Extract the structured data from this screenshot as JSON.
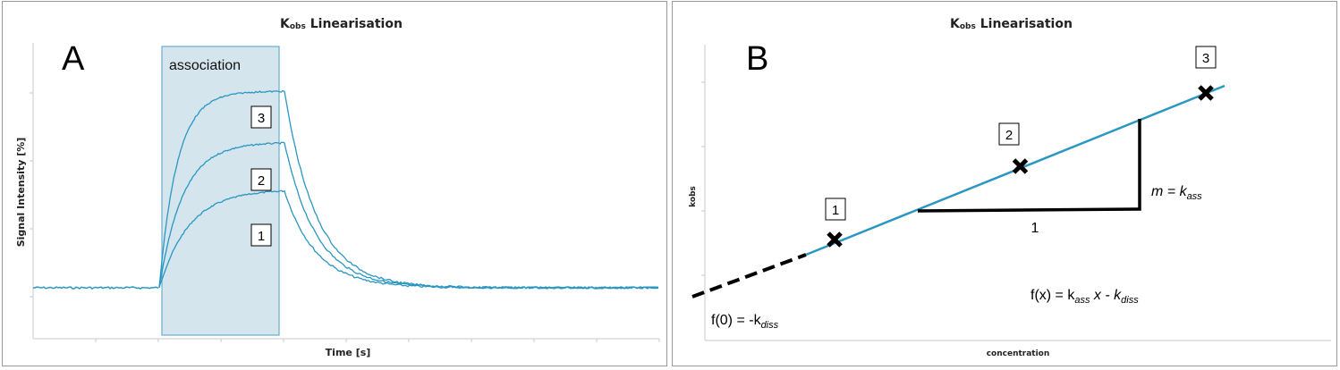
{
  "chart_data": [
    {
      "panel": "A",
      "type": "line",
      "title_main": "K",
      "title_sub": "obs",
      "title_rest": " Linearisation",
      "xlabel": "Time [s]",
      "ylabel": "Signal Intensity [%]",
      "grid": false,
      "shaded_region": {
        "label": "association"
      },
      "series": [
        {
          "label": "1",
          "plateau": 0.5
        },
        {
          "label": "2",
          "plateau": 0.74
        },
        {
          "label": "3",
          "plateau": 1.0
        }
      ],
      "color": "#2a97c2"
    },
    {
      "panel": "B",
      "type": "line",
      "title_main": "K",
      "title_sub": "obs",
      "title_rest": " Linearisation",
      "xlabel": "concentration",
      "ylabel": "kobs",
      "grid": false,
      "points": [
        {
          "label": "1",
          "x": 1,
          "y": 1
        },
        {
          "label": "2",
          "x": 2,
          "y": 2
        },
        {
          "label": "3",
          "x": 3,
          "y": 3
        }
      ],
      "triangle_run_label": "1",
      "slope_label": {
        "lhs": "m = k",
        "sub": "ass"
      },
      "function_label": {
        "a": "f(x) = k",
        "sub1": "ass",
        "b": " x - k",
        "sub2": "diss"
      },
      "intercept_label": {
        "a": "f(0) = -k",
        "sub": "diss"
      },
      "line_color": "#2a97c2"
    }
  ]
}
